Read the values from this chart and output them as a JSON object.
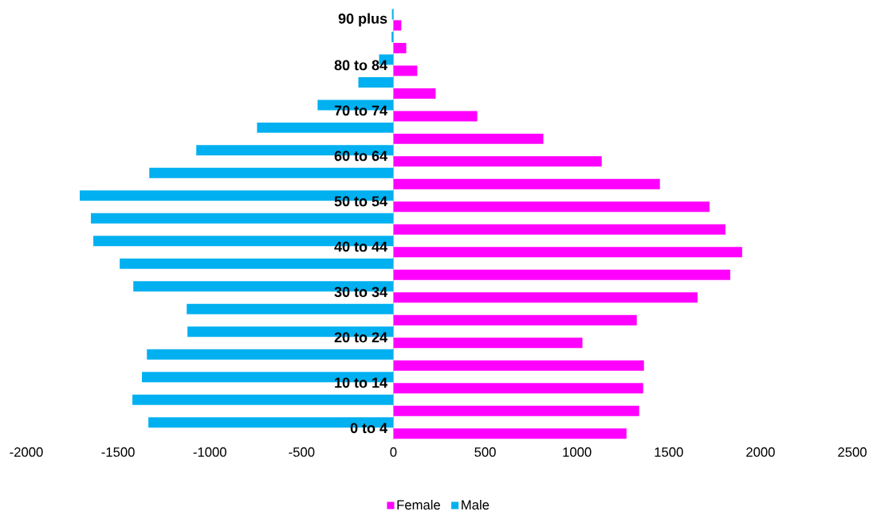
{
  "chart_data": {
    "type": "bar",
    "orientation": "horizontal",
    "categories": [
      "90 plus",
      null,
      "80 to 84",
      null,
      "70 to 74",
      null,
      "60 to 64",
      null,
      "50 to 54",
      null,
      "40 to 44",
      null,
      "30 to 34",
      null,
      "20 to 24",
      null,
      "10 to 14",
      null,
      "0 to 4"
    ],
    "series": [
      {
        "name": "Female",
        "color": "#ff00ff",
        "values": [
          43,
          70,
          130,
          230,
          457,
          817,
          1135,
          1452,
          1722,
          1809,
          1900,
          1835,
          1657,
          1326,
          1030,
          1365,
          1361,
          1339,
          1270
        ]
      },
      {
        "name": "Male",
        "color": "#00b0f0",
        "values": [
          -8,
          -10,
          -78,
          -191,
          -413,
          -743,
          -1074,
          -1330,
          -1709,
          -1648,
          -1635,
          -1491,
          -1417,
          -1126,
          -1122,
          -1343,
          -1370,
          -1422,
          -1335
        ]
      }
    ],
    "xlim": [
      -2000,
      2500
    ],
    "xticks": [
      -2000,
      -1500,
      -1000,
      -500,
      0,
      500,
      1000,
      1500,
      2000,
      2500
    ],
    "legend": "bottom"
  }
}
